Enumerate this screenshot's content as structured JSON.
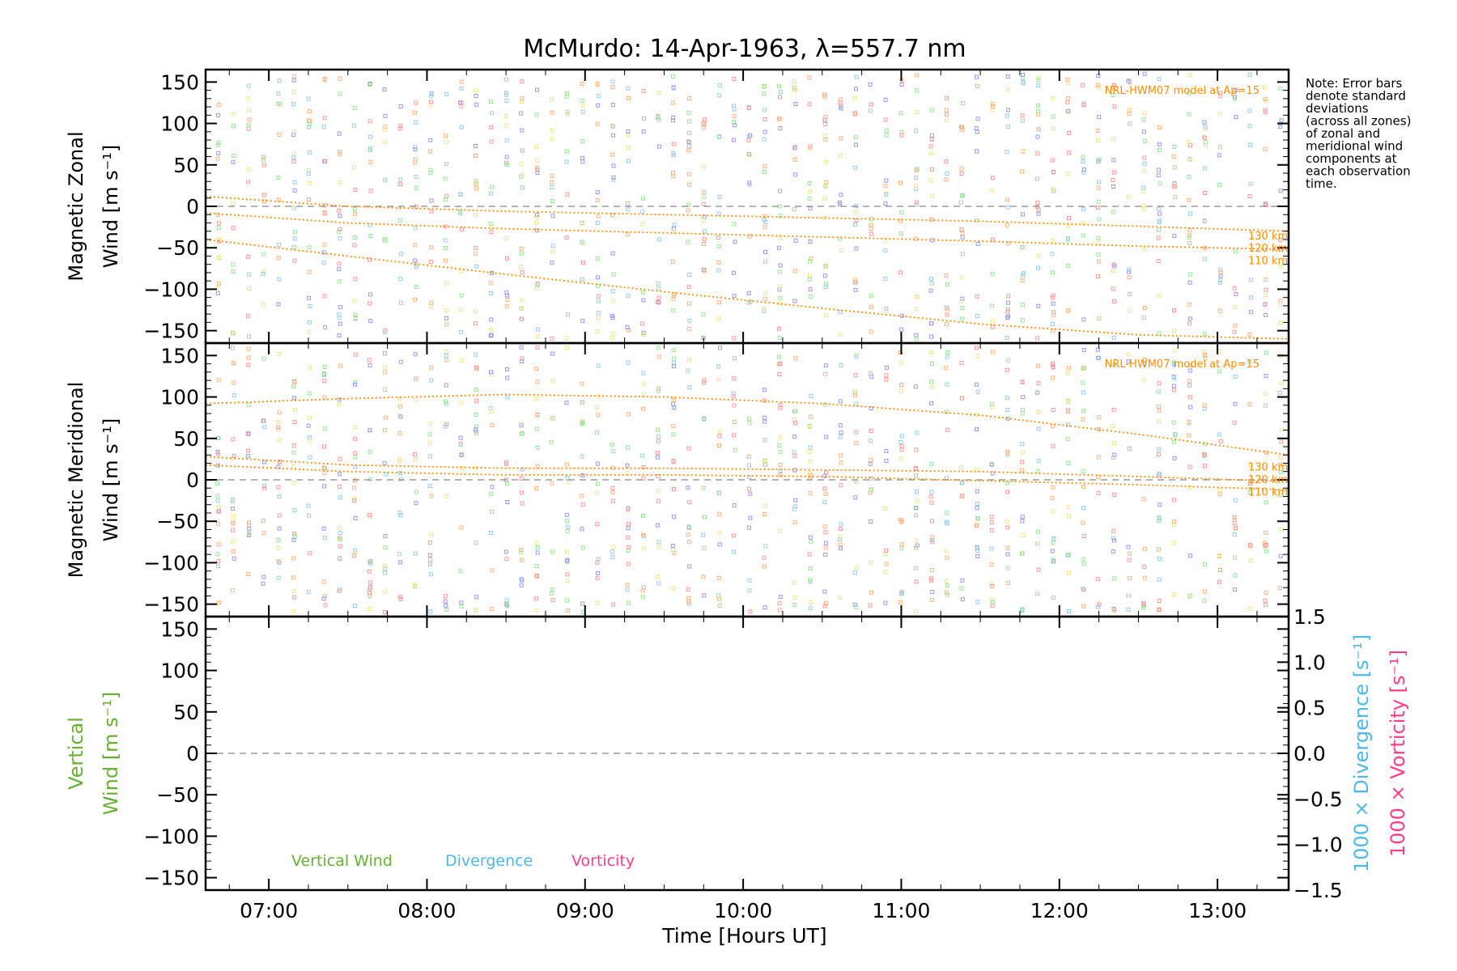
{
  "chart_data": {
    "type": "scatter",
    "title": "McMurdo: 14-Apr-1963, λ=557.7 nm",
    "xlabel": "Time [Hours UT]",
    "x_ticks": [
      "07:00",
      "08:00",
      "09:00",
      "10:00",
      "11:00",
      "12:00",
      "13:00"
    ],
    "x_tick_values": [
      7,
      8,
      9,
      10,
      11,
      12,
      13
    ],
    "xlim": [
      6.6,
      13.45
    ],
    "note": [
      "Note: Error bars",
      "denote standard",
      "deviations",
      "(across all zones)",
      "of zonal and",
      "meridional wind",
      "components at",
      "each observation",
      "time."
    ],
    "colors": {
      "model": "#ff8c00",
      "vertical": "#66b032",
      "divergence": "#4db8e8",
      "vorticity": "#ff3d8b",
      "zone_palette": [
        "#9999ee",
        "#99ccee",
        "#99e699",
        "#f0e68c",
        "#ffb380",
        "#ff9999"
      ],
      "zero_line": "#888888"
    },
    "panels": [
      {
        "id": "zonal",
        "ylabel_line1": "Magnetic Zonal",
        "ylabel_line2": "Wind [m s⁻¹]",
        "ylim": [
          -165,
          165
        ],
        "y_ticks": [
          "150",
          "100",
          "50",
          "0",
          "−50",
          "−100",
          "−150"
        ],
        "y_tick_values": [
          150,
          100,
          50,
          0,
          -50,
          -100,
          -150
        ],
        "model_label": "NRL-HWM07 model at Ap=15",
        "model_series": [
          {
            "name": "130 km",
            "x": [
              6.6,
              7.5,
              8.5,
              9.5,
              10.5,
              11.5,
              12.5,
              13.45
            ],
            "y": [
              12,
              0,
              -6,
              -10,
              -14,
              -18,
              -24,
              -30
            ]
          },
          {
            "name": "120 km",
            "x": [
              6.6,
              7.5,
              8.5,
              9.5,
              10.5,
              11.5,
              12.5,
              13.45
            ],
            "y": [
              -8,
              -20,
              -27,
              -32,
              -37,
              -42,
              -48,
              -52
            ]
          },
          {
            "name": "110 km",
            "x": [
              6.6,
              7.5,
              8.5,
              9.5,
              10.5,
              11.5,
              12.5,
              13.45
            ],
            "y": [
              -40,
              -60,
              -82,
              -103,
              -123,
              -142,
              -155,
              -160
            ]
          }
        ]
      },
      {
        "id": "meridional",
        "ylabel_line1": "Magnetic Meridional",
        "ylabel_line2": "Wind [m s⁻¹]",
        "ylim": [
          -165,
          165
        ],
        "y_ticks": [
          "150",
          "100",
          "50",
          "0",
          "−50",
          "−100",
          "−150"
        ],
        "y_tick_values": [
          150,
          100,
          50,
          0,
          -50,
          -100,
          -150
        ],
        "model_label": "NRL-HWM07 model at Ap=15",
        "model_series": [
          {
            "name": "130 km",
            "x": [
              6.6,
              7.5,
              8.5,
              9.5,
              10.5,
              11.5,
              12.5,
              13.45
            ],
            "y": [
              92,
              98,
              103,
              100,
              92,
              78,
              55,
              30
            ]
          },
          {
            "name": "120 km",
            "x": [
              6.6,
              7.5,
              8.5,
              9.5,
              10.5,
              11.5,
              12.5,
              13.45
            ],
            "y": [
              28,
              18,
              14,
              14,
              12,
              10,
              4,
              -2
            ]
          },
          {
            "name": "110 km",
            "x": [
              6.6,
              7.5,
              8.5,
              9.5,
              10.5,
              11.5,
              12.5,
              13.45
            ],
            "y": [
              18,
              10,
              6,
              6,
              4,
              -1,
              -6,
              -12
            ]
          }
        ]
      },
      {
        "id": "vertical",
        "ylabel_line1": "Vertical",
        "ylabel_line2": "Wind [m s⁻¹]",
        "ylim": [
          -165,
          165
        ],
        "y_ticks": [
          "150",
          "100",
          "50",
          "0",
          "−50",
          "−100",
          "−150"
        ],
        "y_tick_values": [
          150,
          100,
          50,
          0,
          -50,
          -100,
          -150
        ],
        "right_ylim": [
          -1.5,
          1.5
        ],
        "right_ticks": [
          "1.5",
          "1.0",
          "0.5",
          "0.0",
          "−0.5",
          "−1.0",
          "−1.5"
        ],
        "right_tick_values": [
          1.5,
          1.0,
          0.5,
          0.0,
          -0.5,
          -1.0,
          -1.5
        ],
        "right_label_divergence": "1000 × Divergence [s⁻¹]",
        "right_label_vorticity": "1000 × Vorticity [s⁻¹]",
        "legend": [
          "Vertical Wind",
          "Divergence",
          "Vorticity"
        ]
      }
    ]
  }
}
